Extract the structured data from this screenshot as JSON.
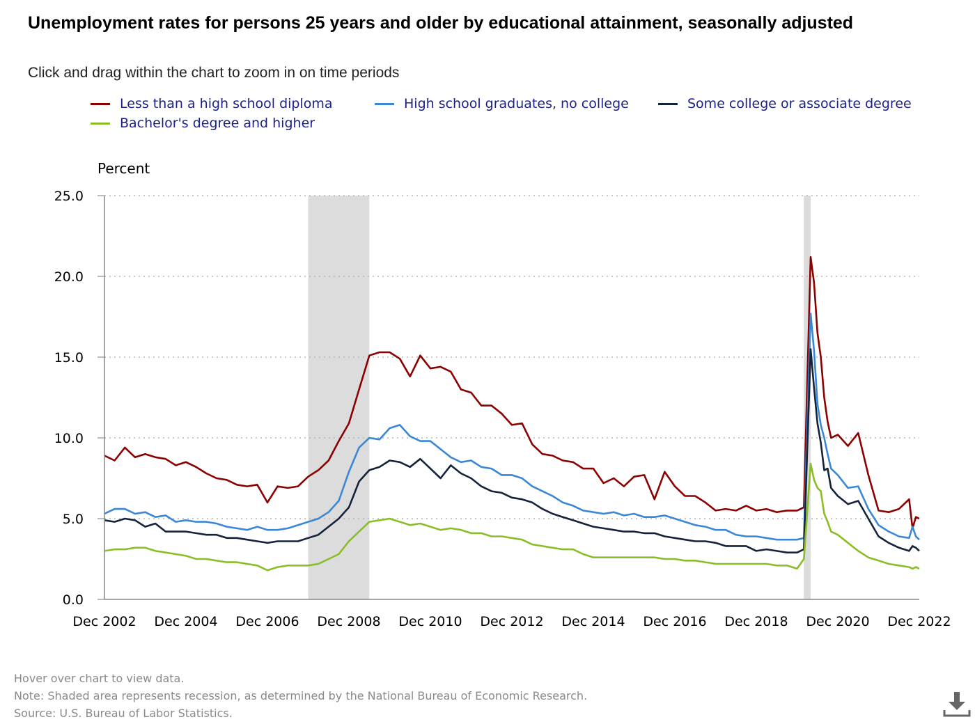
{
  "title": "Unemployment rates for persons 25 years and older by educational attainment, seasonally adjusted",
  "subtitle": "Click and drag within the chart to zoom in on time periods",
  "footer": {
    "hover": "Hover over chart to view data.",
    "note": "Note: Shaded area represents recession, as determined by the National Bureau of Economic Research.",
    "source": "Source: U.S. Bureau of Labor Statistics."
  },
  "colors": {
    "less_than_hs": "#8b0000",
    "hs_grad": "#3a87d6",
    "some_college": "#14233a",
    "bachelors": "#8bbd27",
    "recession": "#dcdcdc",
    "legend_text": "#1a1f8a"
  },
  "icons": {
    "download": "download-icon"
  },
  "chart_data": {
    "type": "line",
    "ylabel": "Percent",
    "ylim": [
      0,
      25
    ],
    "y_ticks": [
      "0.0",
      "5.0",
      "10.0",
      "15.0",
      "20.0",
      "25.0"
    ],
    "x_range": [
      "2002-12",
      "2022-12"
    ],
    "x_ticks": [
      "Dec 2002",
      "Dec 2004",
      "Dec 2006",
      "Dec 2008",
      "Dec 2010",
      "Dec 2012",
      "Dec 2014",
      "Dec 2016",
      "Dec 2018",
      "Dec 2020",
      "Dec 2022"
    ],
    "grid": "horizontal dotted",
    "legend": "top",
    "recessions": [
      [
        "2007-12",
        "2009-06"
      ],
      [
        "2020-02",
        "2020-04"
      ]
    ],
    "series": [
      {
        "name": "Less than a high school diploma",
        "color": "#8b0000",
        "x": [
          "2002-12",
          "2003-03",
          "2003-06",
          "2003-09",
          "2003-12",
          "2004-03",
          "2004-06",
          "2004-09",
          "2004-12",
          "2005-03",
          "2005-06",
          "2005-09",
          "2005-12",
          "2006-03",
          "2006-06",
          "2006-09",
          "2006-12",
          "2007-03",
          "2007-06",
          "2007-09",
          "2007-12",
          "2008-03",
          "2008-06",
          "2008-09",
          "2008-12",
          "2009-03",
          "2009-06",
          "2009-09",
          "2009-12",
          "2010-03",
          "2010-06",
          "2010-09",
          "2010-12",
          "2011-03",
          "2011-06",
          "2011-09",
          "2011-12",
          "2012-03",
          "2012-06",
          "2012-09",
          "2012-12",
          "2013-03",
          "2013-06",
          "2013-09",
          "2013-12",
          "2014-03",
          "2014-06",
          "2014-09",
          "2014-12",
          "2015-03",
          "2015-06",
          "2015-09",
          "2015-12",
          "2016-03",
          "2016-06",
          "2016-09",
          "2016-12",
          "2017-03",
          "2017-06",
          "2017-09",
          "2017-12",
          "2018-03",
          "2018-06",
          "2018-09",
          "2018-12",
          "2019-03",
          "2019-06",
          "2019-09",
          "2019-12",
          "2020-02",
          "2020-04",
          "2020-05",
          "2020-06",
          "2020-07",
          "2020-08",
          "2020-09",
          "2020-10",
          "2020-12",
          "2021-03",
          "2021-06",
          "2021-09",
          "2021-12",
          "2022-03",
          "2022-06",
          "2022-09",
          "2022-10",
          "2022-11",
          "2022-12"
        ],
        "values": [
          8.9,
          8.6,
          9.4,
          8.8,
          9.0,
          8.8,
          8.7,
          8.3,
          8.5,
          8.2,
          7.8,
          7.5,
          7.4,
          7.1,
          7.0,
          7.1,
          6.0,
          7.0,
          6.9,
          7.0,
          7.6,
          8.0,
          8.6,
          9.8,
          10.9,
          13.0,
          15.1,
          15.3,
          15.3,
          14.9,
          13.8,
          15.1,
          14.3,
          14.4,
          14.1,
          13.0,
          12.8,
          12.0,
          12.0,
          11.5,
          10.8,
          10.9,
          9.6,
          9.0,
          8.9,
          8.6,
          8.5,
          8.1,
          8.1,
          7.2,
          7.5,
          7.0,
          7.6,
          7.7,
          6.2,
          7.9,
          7.0,
          6.4,
          6.4,
          6.0,
          5.5,
          5.6,
          5.5,
          5.8,
          5.5,
          5.6,
          5.4,
          5.5,
          5.5,
          5.7,
          21.2,
          19.6,
          16.5,
          15.0,
          12.5,
          11.0,
          10.0,
          10.2,
          9.5,
          10.3,
          7.7,
          5.5,
          5.4,
          5.6,
          6.2,
          4.4,
          5.1,
          5.0
        ]
      },
      {
        "name": "High school graduates, no college",
        "color": "#3a87d6",
        "x": [
          "2002-12",
          "2003-03",
          "2003-06",
          "2003-09",
          "2003-12",
          "2004-03",
          "2004-06",
          "2004-09",
          "2004-12",
          "2005-03",
          "2005-06",
          "2005-09",
          "2005-12",
          "2006-03",
          "2006-06",
          "2006-09",
          "2006-12",
          "2007-03",
          "2007-06",
          "2007-09",
          "2007-12",
          "2008-03",
          "2008-06",
          "2008-09",
          "2008-12",
          "2009-03",
          "2009-06",
          "2009-09",
          "2009-12",
          "2010-03",
          "2010-06",
          "2010-09",
          "2010-12",
          "2011-03",
          "2011-06",
          "2011-09",
          "2011-12",
          "2012-03",
          "2012-06",
          "2012-09",
          "2012-12",
          "2013-03",
          "2013-06",
          "2013-09",
          "2013-12",
          "2014-03",
          "2014-06",
          "2014-09",
          "2014-12",
          "2015-03",
          "2015-06",
          "2015-09",
          "2015-12",
          "2016-03",
          "2016-06",
          "2016-09",
          "2016-12",
          "2017-03",
          "2017-06",
          "2017-09",
          "2017-12",
          "2018-03",
          "2018-06",
          "2018-09",
          "2018-12",
          "2019-03",
          "2019-06",
          "2019-09",
          "2019-12",
          "2020-02",
          "2020-04",
          "2020-05",
          "2020-06",
          "2020-07",
          "2020-08",
          "2020-09",
          "2020-10",
          "2020-12",
          "2021-03",
          "2021-06",
          "2021-09",
          "2021-12",
          "2022-03",
          "2022-06",
          "2022-09",
          "2022-10",
          "2022-11",
          "2022-12"
        ],
        "values": [
          5.3,
          5.6,
          5.6,
          5.3,
          5.4,
          5.1,
          5.2,
          4.8,
          4.9,
          4.8,
          4.8,
          4.7,
          4.5,
          4.4,
          4.3,
          4.5,
          4.3,
          4.3,
          4.4,
          4.6,
          4.8,
          5.0,
          5.4,
          6.1,
          7.9,
          9.4,
          10.0,
          9.9,
          10.6,
          10.8,
          10.1,
          9.8,
          9.8,
          9.3,
          8.8,
          8.5,
          8.6,
          8.2,
          8.1,
          7.7,
          7.7,
          7.5,
          7.0,
          6.7,
          6.4,
          6.0,
          5.8,
          5.5,
          5.4,
          5.3,
          5.4,
          5.2,
          5.3,
          5.1,
          5.1,
          5.2,
          5.0,
          4.8,
          4.6,
          4.5,
          4.3,
          4.3,
          4.0,
          3.9,
          3.9,
          3.8,
          3.7,
          3.7,
          3.7,
          3.8,
          17.7,
          15.4,
          12.1,
          10.8,
          10.0,
          9.0,
          8.1,
          7.7,
          6.9,
          7.0,
          5.6,
          4.6,
          4.2,
          3.9,
          3.8,
          4.5,
          3.9,
          3.7
        ]
      },
      {
        "name": "Some college or associate degree",
        "color": "#14233a",
        "x": [
          "2002-12",
          "2003-03",
          "2003-06",
          "2003-09",
          "2003-12",
          "2004-03",
          "2004-06",
          "2004-09",
          "2004-12",
          "2005-03",
          "2005-06",
          "2005-09",
          "2005-12",
          "2006-03",
          "2006-06",
          "2006-09",
          "2006-12",
          "2007-03",
          "2007-06",
          "2007-09",
          "2007-12",
          "2008-03",
          "2008-06",
          "2008-09",
          "2008-12",
          "2009-03",
          "2009-06",
          "2009-09",
          "2009-12",
          "2010-03",
          "2010-06",
          "2010-09",
          "2010-12",
          "2011-03",
          "2011-06",
          "2011-09",
          "2011-12",
          "2012-03",
          "2012-06",
          "2012-09",
          "2012-12",
          "2013-03",
          "2013-06",
          "2013-09",
          "2013-12",
          "2014-03",
          "2014-06",
          "2014-09",
          "2014-12",
          "2015-03",
          "2015-06",
          "2015-09",
          "2015-12",
          "2016-03",
          "2016-06",
          "2016-09",
          "2016-12",
          "2017-03",
          "2017-06",
          "2017-09",
          "2017-12",
          "2018-03",
          "2018-06",
          "2018-09",
          "2018-12",
          "2019-03",
          "2019-06",
          "2019-09",
          "2019-12",
          "2020-02",
          "2020-04",
          "2020-05",
          "2020-06",
          "2020-07",
          "2020-08",
          "2020-09",
          "2020-10",
          "2020-12",
          "2021-03",
          "2021-06",
          "2021-09",
          "2021-12",
          "2022-03",
          "2022-06",
          "2022-09",
          "2022-10",
          "2022-11",
          "2022-12"
        ],
        "values": [
          4.9,
          4.8,
          5.0,
          4.9,
          4.5,
          4.7,
          4.2,
          4.2,
          4.2,
          4.1,
          4.0,
          4.0,
          3.8,
          3.8,
          3.7,
          3.6,
          3.5,
          3.6,
          3.6,
          3.6,
          3.8,
          4.0,
          4.5,
          5.0,
          5.7,
          7.3,
          8.0,
          8.2,
          8.6,
          8.5,
          8.2,
          8.7,
          8.1,
          7.5,
          8.3,
          7.8,
          7.5,
          7.0,
          6.7,
          6.6,
          6.3,
          6.2,
          6.0,
          5.6,
          5.3,
          5.1,
          4.9,
          4.7,
          4.5,
          4.4,
          4.3,
          4.2,
          4.2,
          4.1,
          4.1,
          3.9,
          3.8,
          3.7,
          3.6,
          3.6,
          3.5,
          3.3,
          3.3,
          3.3,
          3.0,
          3.1,
          3.0,
          2.9,
          2.9,
          3.1,
          15.5,
          13.1,
          10.9,
          9.7,
          8.0,
          8.1,
          6.9,
          6.4,
          5.9,
          6.1,
          5.0,
          3.9,
          3.5,
          3.2,
          3.0,
          3.3,
          3.2,
          3.0
        ]
      },
      {
        "name": "Bachelor's degree and higher",
        "color": "#8bbd27",
        "x": [
          "2002-12",
          "2003-03",
          "2003-06",
          "2003-09",
          "2003-12",
          "2004-03",
          "2004-06",
          "2004-09",
          "2004-12",
          "2005-03",
          "2005-06",
          "2005-09",
          "2005-12",
          "2006-03",
          "2006-06",
          "2006-09",
          "2006-12",
          "2007-03",
          "2007-06",
          "2007-09",
          "2007-12",
          "2008-03",
          "2008-06",
          "2008-09",
          "2008-12",
          "2009-03",
          "2009-06",
          "2009-09",
          "2009-12",
          "2010-03",
          "2010-06",
          "2010-09",
          "2010-12",
          "2011-03",
          "2011-06",
          "2011-09",
          "2011-12",
          "2012-03",
          "2012-06",
          "2012-09",
          "2012-12",
          "2013-03",
          "2013-06",
          "2013-09",
          "2013-12",
          "2014-03",
          "2014-06",
          "2014-09",
          "2014-12",
          "2015-03",
          "2015-06",
          "2015-09",
          "2015-12",
          "2016-03",
          "2016-06",
          "2016-09",
          "2016-12",
          "2017-03",
          "2017-06",
          "2017-09",
          "2017-12",
          "2018-03",
          "2018-06",
          "2018-09",
          "2018-12",
          "2019-03",
          "2019-06",
          "2019-09",
          "2019-12",
          "2020-02",
          "2020-04",
          "2020-05",
          "2020-06",
          "2020-07",
          "2020-08",
          "2020-09",
          "2020-10",
          "2020-12",
          "2021-03",
          "2021-06",
          "2021-09",
          "2021-12",
          "2022-03",
          "2022-06",
          "2022-09",
          "2022-10",
          "2022-11",
          "2022-12"
        ],
        "values": [
          3.0,
          3.1,
          3.1,
          3.2,
          3.2,
          3.0,
          2.9,
          2.8,
          2.7,
          2.5,
          2.5,
          2.4,
          2.3,
          2.3,
          2.2,
          2.1,
          1.8,
          2.0,
          2.1,
          2.1,
          2.1,
          2.2,
          2.5,
          2.8,
          3.6,
          4.2,
          4.8,
          4.9,
          5.0,
          4.8,
          4.6,
          4.7,
          4.5,
          4.3,
          4.4,
          4.3,
          4.1,
          4.1,
          3.9,
          3.9,
          3.8,
          3.7,
          3.4,
          3.3,
          3.2,
          3.1,
          3.1,
          2.8,
          2.6,
          2.6,
          2.6,
          2.6,
          2.6,
          2.6,
          2.6,
          2.5,
          2.5,
          2.4,
          2.4,
          2.3,
          2.2,
          2.2,
          2.2,
          2.2,
          2.2,
          2.2,
          2.1,
          2.1,
          1.9,
          2.5,
          8.4,
          7.4,
          6.9,
          6.7,
          5.3,
          4.8,
          4.2,
          4.0,
          3.5,
          3.0,
          2.6,
          2.4,
          2.2,
          2.1,
          2.0,
          1.9,
          2.0,
          1.9
        ]
      }
    ]
  }
}
